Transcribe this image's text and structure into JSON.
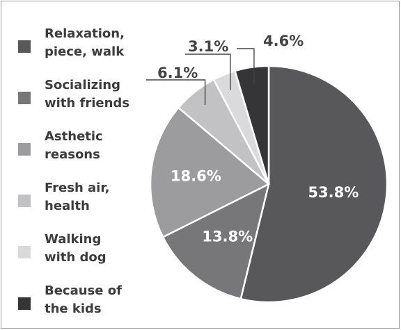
{
  "chart_data": {
    "type": "pie",
    "title": "",
    "legend_position": "left",
    "categories": [
      "Relaxation,\npiece, walk",
      "Socializing\nwith friends",
      "Asthetic\nreasons",
      "Fresh air,\nhealth",
      "Walking\nwith dog",
      "Because of\nthe kids"
    ],
    "values": [
      53.8,
      13.8,
      18.6,
      6.1,
      3.1,
      4.6
    ],
    "value_labels": [
      "53.8%",
      "13.8%",
      "18.6%",
      "6.1%",
      "3.1%",
      "4.6%"
    ],
    "colors": [
      "#58585a",
      "#77777a",
      "#9c9c9e",
      "#c2c2c4",
      "#dadadc",
      "#353537"
    ]
  }
}
